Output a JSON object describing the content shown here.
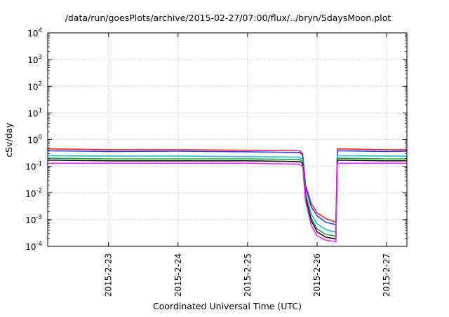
{
  "chart_data": {
    "type": "line",
    "title": "/data/run/goesPlots/archive/2015-02-27/07:00/flux/../bryn/5daysMoon.plot",
    "xlabel": "Coordinated Universal Time (UTC)",
    "ylabel": "cSv/day",
    "x_range": [
      "2015-02-22T03:00",
      "2015-02-27T07:00"
    ],
    "y_scale": "log",
    "ylim": [
      0.0001,
      10000
    ],
    "grid": true,
    "legend": "none",
    "y_ticks": [
      {
        "base": "10",
        "exp": "-4"
      },
      {
        "base": "10",
        "exp": "-3"
      },
      {
        "base": "10",
        "exp": "-2"
      },
      {
        "base": "10",
        "exp": "-1"
      },
      {
        "base": "10",
        "exp": "0"
      },
      {
        "base": "10",
        "exp": "1"
      },
      {
        "base": "10",
        "exp": "2"
      },
      {
        "base": "10",
        "exp": "3"
      },
      {
        "base": "10",
        "exp": "4"
      }
    ],
    "x_ticks": [
      {
        "date": "2015-02-23T00:00",
        "label": "2015-2-23"
      },
      {
        "date": "2015-02-24T00:00",
        "label": "2015-2-24"
      },
      {
        "date": "2015-02-25T00:00",
        "label": "2015-2-25"
      },
      {
        "date": "2015-02-26T00:00",
        "label": "2015-2-26"
      },
      {
        "date": "2015-02-27T00:00",
        "label": "2015-2-27"
      }
    ],
    "series": [
      {
        "color": "#ff2020",
        "x": [
          "2015-02-22T03:00",
          "2015-02-23T00:00",
          "2015-02-24T00:00",
          "2015-02-25T00:00",
          "2015-02-25T18:00",
          "2015-02-25T19:00",
          "2015-02-25T20:00",
          "2015-02-25T22:00",
          "2015-02-26T00:00",
          "2015-02-26T03:00",
          "2015-02-26T06:30",
          "2015-02-26T07:00",
          "2015-02-27T00:00",
          "2015-02-27T07:00"
        ],
        "y": [
          0.45,
          0.42,
          0.42,
          0.4,
          0.38,
          0.3,
          0.02,
          0.004,
          0.0018,
          0.0011,
          0.0008,
          0.45,
          0.42,
          0.42
        ]
      },
      {
        "color": "#2040ff",
        "x": [
          "2015-02-22T03:00",
          "2015-02-23T00:00",
          "2015-02-24T00:00",
          "2015-02-25T00:00",
          "2015-02-25T18:00",
          "2015-02-25T19:00",
          "2015-02-25T20:00",
          "2015-02-25T22:00",
          "2015-02-26T00:00",
          "2015-02-26T03:00",
          "2015-02-26T06:30",
          "2015-02-26T07:00",
          "2015-02-27T00:00",
          "2015-02-27T07:00"
        ],
        "y": [
          0.38,
          0.36,
          0.37,
          0.35,
          0.33,
          0.26,
          0.016,
          0.003,
          0.0014,
          0.0008,
          0.00065,
          0.38,
          0.36,
          0.37
        ]
      },
      {
        "color": "#20c0c0",
        "x": [
          "2015-02-22T03:00",
          "2015-02-23T00:00",
          "2015-02-24T00:00",
          "2015-02-25T00:00",
          "2015-02-25T18:00",
          "2015-02-25T19:00",
          "2015-02-25T20:00",
          "2015-02-25T22:00",
          "2015-02-26T00:00",
          "2015-02-26T03:00",
          "2015-02-26T06:30",
          "2015-02-26T07:00",
          "2015-02-27T00:00",
          "2015-02-27T07:00"
        ],
        "y": [
          0.25,
          0.24,
          0.24,
          0.23,
          0.22,
          0.18,
          0.01,
          0.0016,
          0.0007,
          0.00042,
          0.00034,
          0.25,
          0.24,
          0.24
        ]
      },
      {
        "color": "#20a040",
        "x": [
          "2015-02-22T03:00",
          "2015-02-23T00:00",
          "2015-02-24T00:00",
          "2015-02-25T00:00",
          "2015-02-25T18:00",
          "2015-02-25T19:00",
          "2015-02-25T20:00",
          "2015-02-25T22:00",
          "2015-02-26T00:00",
          "2015-02-26T03:00",
          "2015-02-26T06:30",
          "2015-02-26T07:00",
          "2015-02-27T00:00",
          "2015-02-27T07:00"
        ],
        "y": [
          0.2,
          0.19,
          0.19,
          0.19,
          0.18,
          0.15,
          0.008,
          0.0011,
          0.00045,
          0.00028,
          0.00024,
          0.2,
          0.19,
          0.19
        ]
      },
      {
        "color": "#101010",
        "x": [
          "2015-02-22T03:00",
          "2015-02-23T00:00",
          "2015-02-24T00:00",
          "2015-02-25T00:00",
          "2015-02-25T18:00",
          "2015-02-25T19:00",
          "2015-02-25T20:00",
          "2015-02-25T22:00",
          "2015-02-26T00:00",
          "2015-02-26T03:00",
          "2015-02-26T06:30",
          "2015-02-26T07:00",
          "2015-02-27T00:00",
          "2015-02-27T07:00"
        ],
        "y": [
          0.17,
          0.16,
          0.16,
          0.16,
          0.15,
          0.13,
          0.007,
          0.0009,
          0.00035,
          0.00022,
          0.00019,
          0.17,
          0.16,
          0.16
        ]
      },
      {
        "color": "#ff20ff",
        "x": [
          "2015-02-22T03:00",
          "2015-02-23T00:00",
          "2015-02-24T00:00",
          "2015-02-25T00:00",
          "2015-02-25T18:00",
          "2015-02-25T19:00",
          "2015-02-25T20:00",
          "2015-02-25T22:00",
          "2015-02-26T00:00",
          "2015-02-26T03:00",
          "2015-02-26T06:30",
          "2015-02-26T07:00",
          "2015-02-27T00:00",
          "2015-02-27T07:00"
        ],
        "y": [
          0.13,
          0.13,
          0.13,
          0.13,
          0.12,
          0.1,
          0.005,
          0.0006,
          0.00025,
          0.00017,
          0.00015,
          0.13,
          0.13,
          0.13
        ]
      }
    ]
  }
}
